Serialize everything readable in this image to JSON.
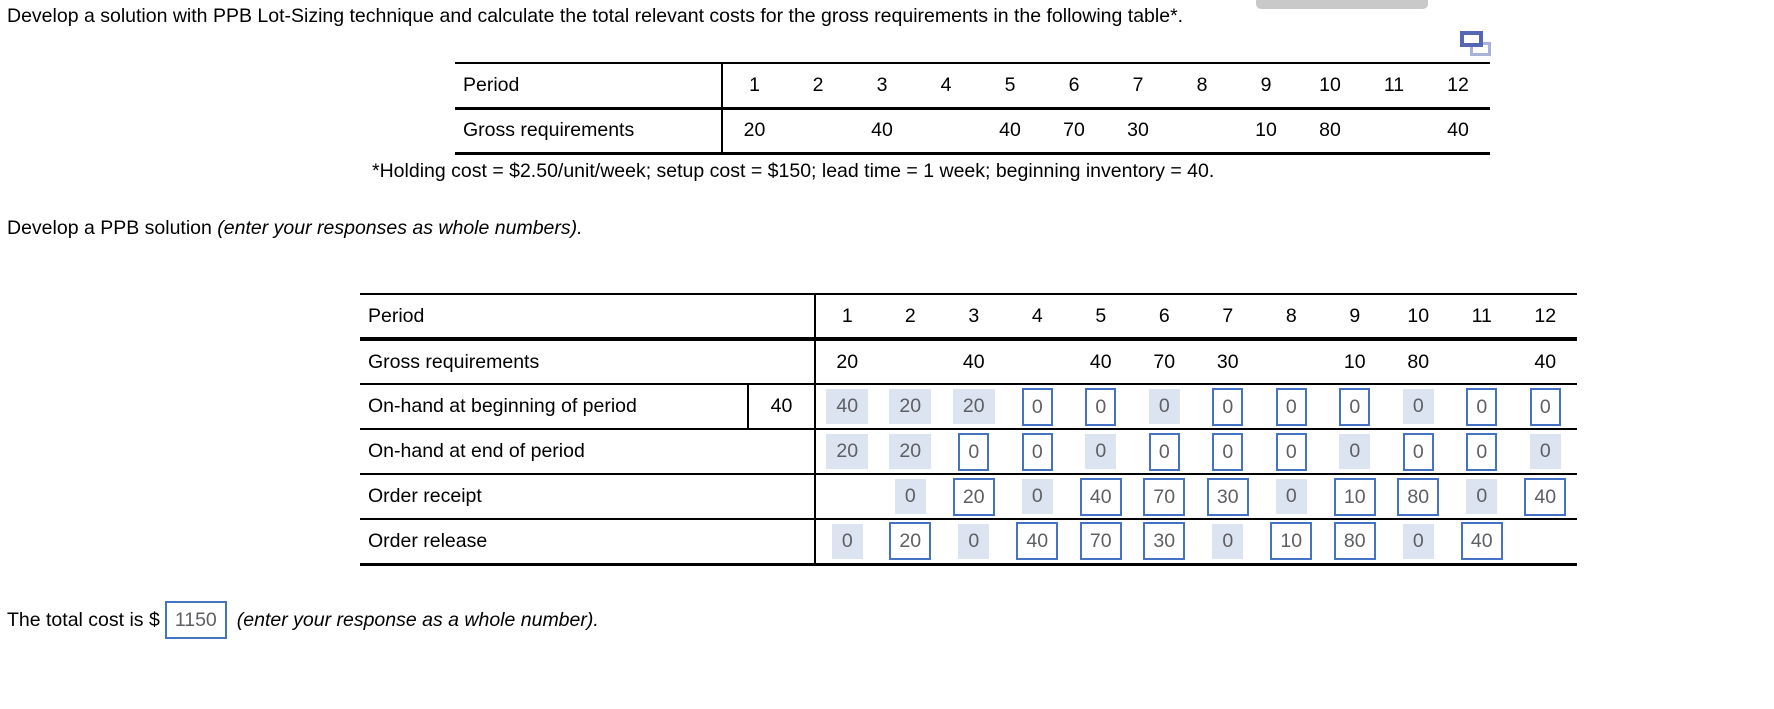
{
  "texts": {
    "question": "Develop a solution with PPB Lot-Sizing technique and calculate the total relevant costs for the gross requirements in the following table*.",
    "footnote": "*Holding cost = $2.50/unit/week; setup cost = $150; lead time = 1 week; beginning inventory = 40.",
    "prompt_main": "Develop a PPB solution",
    "prompt_italic": "(enter your responses as whole numbers).",
    "total_prefix": "The total cost is $",
    "total_value": "1150",
    "total_italic": "(enter your response as a whole number)."
  },
  "colors": {
    "input_border": "#4472c4",
    "filled_bg": "#dce3f1",
    "answer_text": "#5d5f63",
    "table_line": "#000000",
    "scrollbar": "#c9c9c9",
    "icon_front": "#5566b3",
    "icon_back": "#a9b2d8"
  },
  "icons": {
    "popup": "popup-table-icon"
  },
  "requirements_table": {
    "header_label": "Period",
    "row_label": "Gross requirements",
    "periods": [
      "1",
      "2",
      "3",
      "4",
      "5",
      "6",
      "7",
      "8",
      "9",
      "10",
      "11",
      "12"
    ],
    "values": [
      "20",
      "",
      "40",
      "",
      "40",
      "70",
      "30",
      "",
      "10",
      "80",
      "",
      "40"
    ]
  },
  "solution_table": {
    "header_label": "Period",
    "periods": [
      "1",
      "2",
      "3",
      "4",
      "5",
      "6",
      "7",
      "8",
      "9",
      "10",
      "11",
      "12"
    ],
    "rows": [
      {
        "name": "gross-requirements",
        "label": "Gross requirements",
        "cells": [
          {
            "v": "20",
            "s": "plain"
          },
          {
            "v": "",
            "s": "blank"
          },
          {
            "v": "40",
            "s": "plain"
          },
          {
            "v": "",
            "s": "blank"
          },
          {
            "v": "40",
            "s": "plain"
          },
          {
            "v": "70",
            "s": "plain"
          },
          {
            "v": "30",
            "s": "plain"
          },
          {
            "v": "",
            "s": "blank"
          },
          {
            "v": "10",
            "s": "plain"
          },
          {
            "v": "80",
            "s": "plain"
          },
          {
            "v": "",
            "s": "blank"
          },
          {
            "v": "40",
            "s": "plain"
          }
        ]
      },
      {
        "name": "onhand-beginning",
        "label": "On-hand at beginning of period",
        "inv": "40",
        "cells": [
          {
            "v": "40",
            "s": "filled"
          },
          {
            "v": "20",
            "s": "filled"
          },
          {
            "v": "20",
            "s": "filled"
          },
          {
            "v": "0",
            "s": "input"
          },
          {
            "v": "0",
            "s": "input"
          },
          {
            "v": "0",
            "s": "filled"
          },
          {
            "v": "0",
            "s": "input"
          },
          {
            "v": "0",
            "s": "input"
          },
          {
            "v": "0",
            "s": "input"
          },
          {
            "v": "0",
            "s": "filled"
          },
          {
            "v": "0",
            "s": "input"
          },
          {
            "v": "0",
            "s": "input"
          }
        ]
      },
      {
        "name": "onhand-end",
        "label": "On-hand at end of period",
        "cells": [
          {
            "v": "20",
            "s": "filled"
          },
          {
            "v": "20",
            "s": "filled"
          },
          {
            "v": "0",
            "s": "input"
          },
          {
            "v": "0",
            "s": "input"
          },
          {
            "v": "0",
            "s": "filled"
          },
          {
            "v": "0",
            "s": "input"
          },
          {
            "v": "0",
            "s": "input"
          },
          {
            "v": "0",
            "s": "input"
          },
          {
            "v": "0",
            "s": "filled"
          },
          {
            "v": "0",
            "s": "input"
          },
          {
            "v": "0",
            "s": "input"
          },
          {
            "v": "0",
            "s": "filled"
          }
        ]
      },
      {
        "name": "order-receipt",
        "label": "Order receipt",
        "cells": [
          {
            "v": "",
            "s": "blank"
          },
          {
            "v": "0",
            "s": "filled"
          },
          {
            "v": "20",
            "s": "input"
          },
          {
            "v": "0",
            "s": "filled"
          },
          {
            "v": "40",
            "s": "input"
          },
          {
            "v": "70",
            "s": "input"
          },
          {
            "v": "30",
            "s": "input"
          },
          {
            "v": "0",
            "s": "filled"
          },
          {
            "v": "10",
            "s": "input"
          },
          {
            "v": "80",
            "s": "input"
          },
          {
            "v": "0",
            "s": "filled"
          },
          {
            "v": "40",
            "s": "input"
          }
        ]
      },
      {
        "name": "order-release",
        "label": "Order release",
        "cells": [
          {
            "v": "0",
            "s": "filled"
          },
          {
            "v": "20",
            "s": "input"
          },
          {
            "v": "0",
            "s": "filled"
          },
          {
            "v": "40",
            "s": "input"
          },
          {
            "v": "70",
            "s": "input"
          },
          {
            "v": "30",
            "s": "input"
          },
          {
            "v": "0",
            "s": "filled"
          },
          {
            "v": "10",
            "s": "input"
          },
          {
            "v": "80",
            "s": "input"
          },
          {
            "v": "0",
            "s": "filled"
          },
          {
            "v": "40",
            "s": "input"
          },
          {
            "v": "",
            "s": "blank"
          }
        ]
      }
    ]
  }
}
